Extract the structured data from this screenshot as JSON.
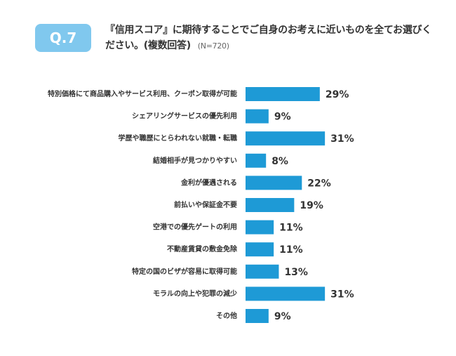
{
  "badge": "Q.7",
  "chart_data": {
    "type": "hbar",
    "title": "『信用スコア』に期待することでご自身のお考えに近いものを全てお選びください。(複数回答)",
    "subtitle": "(N=720)",
    "color": "#1e9ad6",
    "categories": [
      "特別価格にて商品購入やサービス利用、クーポン取得が可能",
      "シェアリングサービスの優先利用",
      "学歴や職歴にとらわれない就職・転職",
      "結婚相手が見つかりやすい",
      "金利が優遇される",
      "前払いや保証金不要",
      "空港での優先ゲートの利用",
      "不動産賃貸の敷金免除",
      "特定の国のビザが容易に取得可能",
      "モラルの向上や犯罪の減少",
      "その他"
    ],
    "values": [
      29,
      9,
      31,
      8,
      22,
      19,
      11,
      11,
      13,
      31,
      9
    ],
    "value_labels": [
      "29%",
      "9%",
      "31%",
      "8%",
      "22%",
      "19%",
      "11%",
      "11%",
      "13%",
      "31%",
      "9%"
    ]
  }
}
